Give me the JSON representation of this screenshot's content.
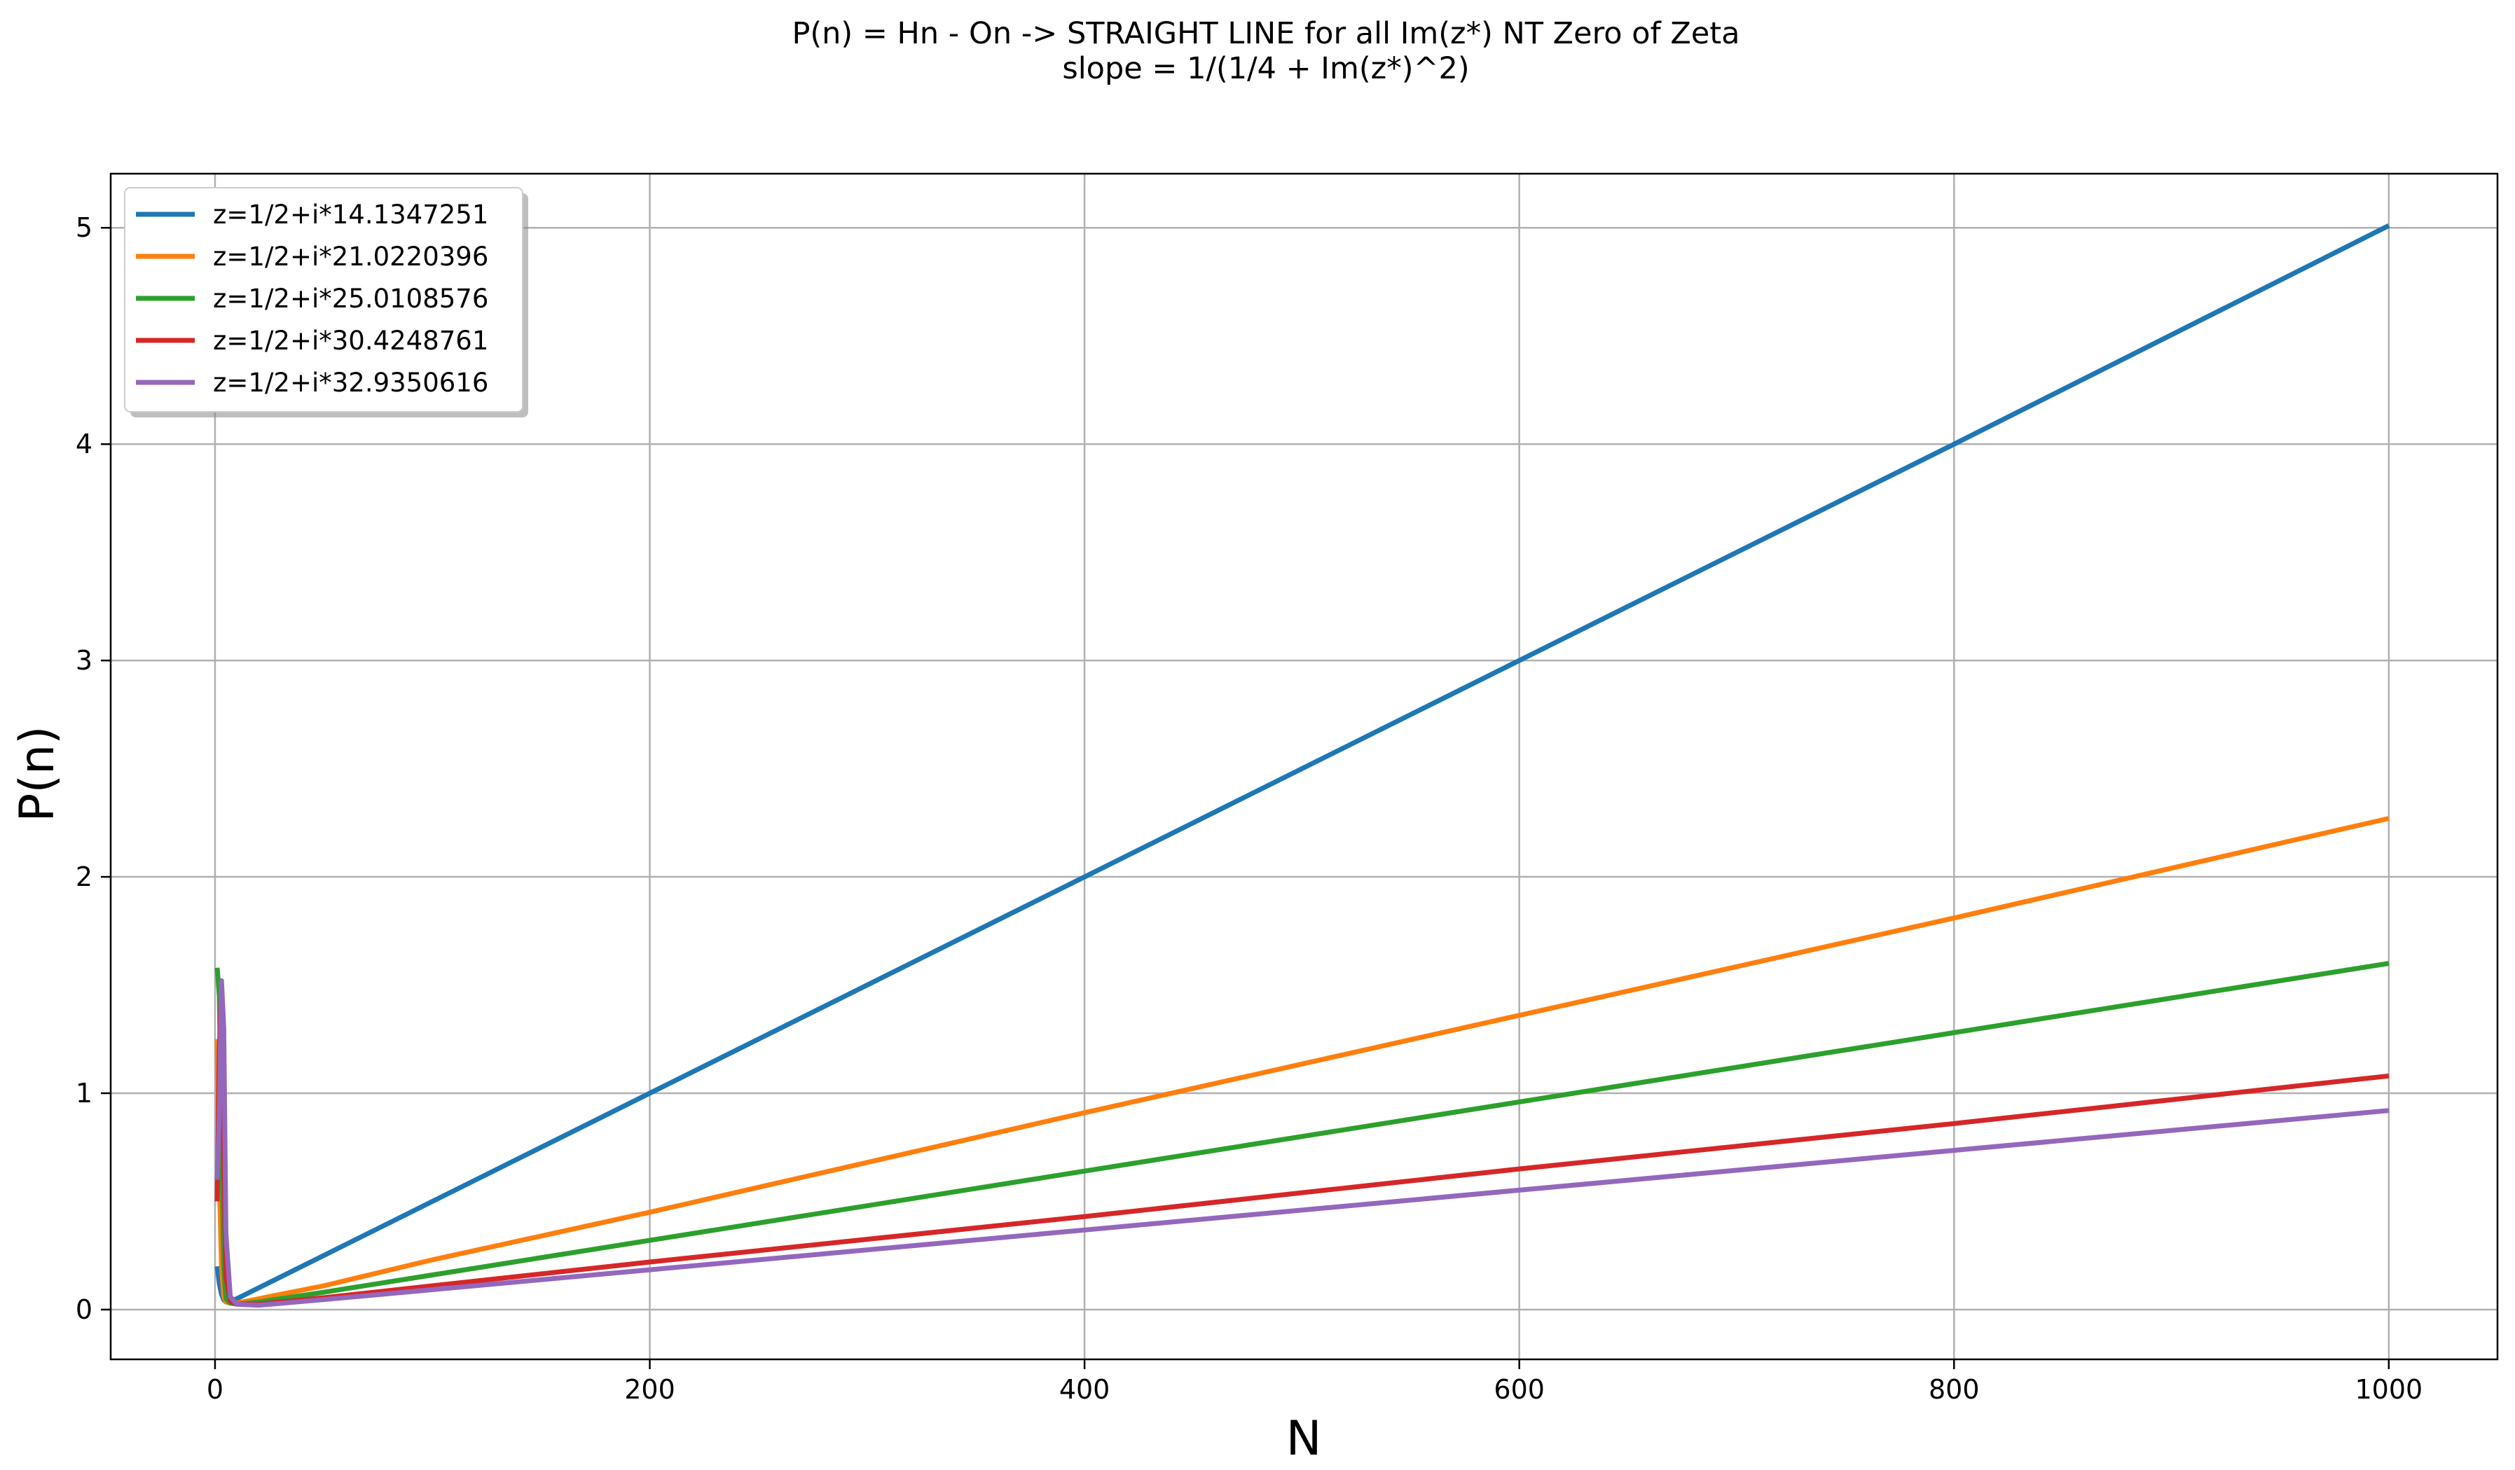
{
  "chart_data": {
    "type": "line",
    "title": "P(n) = Hn - On  -> STRAIGHT LINE for all Im(z*) NT Zero of Zeta",
    "subtitle": "slope = 1/(1/4 + Im(z*)^2)",
    "xlabel": "N",
    "ylabel": "P(n)",
    "xlim": [
      -48,
      1050
    ],
    "ylim": [
      -0.23,
      5.25
    ],
    "xticks": [
      0,
      200,
      400,
      600,
      800,
      1000
    ],
    "yticks": [
      0,
      1,
      2,
      3,
      4,
      5
    ],
    "grid": true,
    "legend_position": "top-left",
    "series": [
      {
        "name": "z=1/2+i*14.1347251",
        "color": "#1f77b4",
        "x": [
          1,
          2,
          3,
          4,
          5,
          7,
          10,
          20,
          50,
          100,
          200,
          400,
          600,
          800,
          1000
        ],
        "y": [
          0.2,
          0.12,
          0.07,
          0.045,
          0.035,
          0.04,
          0.05,
          0.1,
          0.25,
          0.5,
          1.0,
          2.0,
          3.0,
          4.0,
          5.01
        ]
      },
      {
        "name": "z=1/2+i*21.0220396",
        "color": "#ff7f0e",
        "x": [
          1,
          2,
          3,
          4,
          5,
          7,
          10,
          20,
          50,
          100,
          200,
          400,
          600,
          800,
          1000
        ],
        "y": [
          1.25,
          0.6,
          0.2,
          0.06,
          0.035,
          0.03,
          0.03,
          0.05,
          0.11,
          0.23,
          0.45,
          0.91,
          1.36,
          1.81,
          2.27
        ]
      },
      {
        "name": "z=1/2+i*25.0108576",
        "color": "#2ca02c",
        "x": [
          1,
          2,
          3,
          4,
          5,
          7,
          10,
          20,
          50,
          100,
          200,
          400,
          600,
          800,
          1000
        ],
        "y": [
          1.58,
          1.45,
          0.8,
          0.2,
          0.05,
          0.03,
          0.025,
          0.035,
          0.08,
          0.16,
          0.32,
          0.64,
          0.96,
          1.28,
          1.6
        ]
      },
      {
        "name": "z=1/2+i*30.4248761",
        "color": "#d62728",
        "x": [
          1,
          2,
          3,
          4,
          5,
          7,
          10,
          20,
          50,
          100,
          200,
          400,
          600,
          800,
          1000
        ],
        "y": [
          0.5,
          1.2,
          1.5,
          0.7,
          0.15,
          0.04,
          0.025,
          0.025,
          0.055,
          0.11,
          0.22,
          0.43,
          0.65,
          0.86,
          1.08
        ]
      },
      {
        "name": "z=1/2+i*32.9350616",
        "color": "#9467bd",
        "x": [
          1,
          2,
          3,
          4,
          5,
          7,
          10,
          20,
          50,
          100,
          200,
          400,
          600,
          800,
          1000
        ],
        "y": [
          0.6,
          0.9,
          1.52,
          1.3,
          0.35,
          0.06,
          0.025,
          0.02,
          0.046,
          0.092,
          0.184,
          0.368,
          0.552,
          0.736,
          0.92
        ]
      }
    ]
  }
}
